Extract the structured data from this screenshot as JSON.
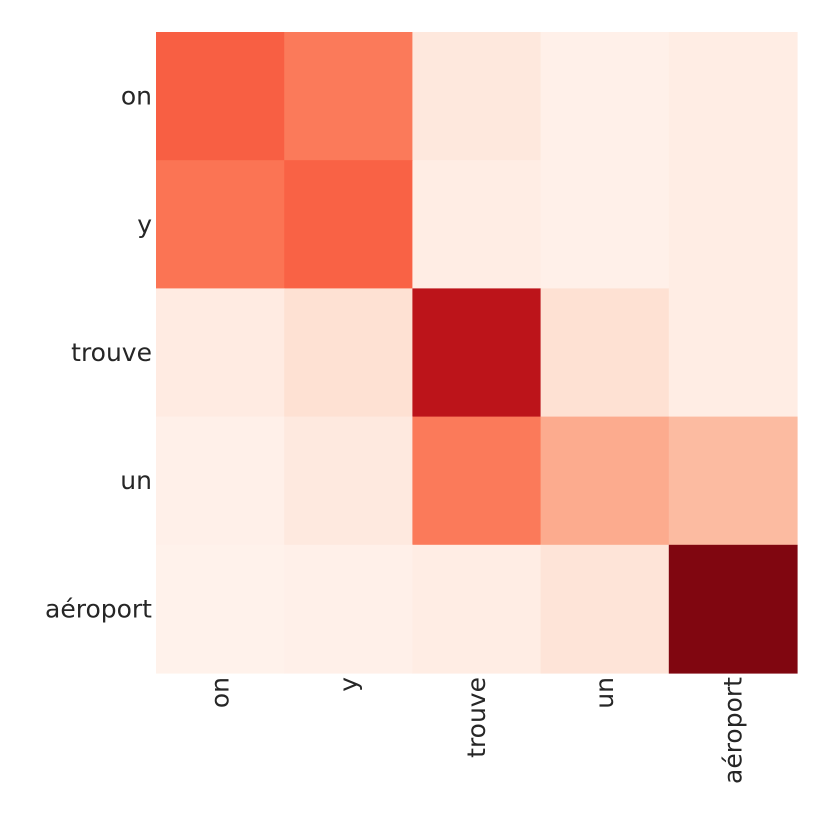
{
  "chart_data": {
    "type": "heatmap",
    "title": "",
    "xlabel": "",
    "ylabel": "",
    "x_categories": [
      "on",
      "y",
      "trouve",
      "un",
      "aéroport"
    ],
    "y_categories": [
      "on",
      "y",
      "trouve",
      "un",
      "aéroport"
    ],
    "colormap": "Reds",
    "value_range": [
      0,
      1
    ],
    "values": [
      [
        0.53,
        0.45,
        0.08,
        0.03,
        0.05
      ],
      [
        0.47,
        0.52,
        0.05,
        0.03,
        0.05
      ],
      [
        0.06,
        0.12,
        0.8,
        0.12,
        0.05
      ],
      [
        0.03,
        0.07,
        0.45,
        0.3,
        0.25
      ],
      [
        0.02,
        0.03,
        0.05,
        0.1,
        0.95
      ]
    ],
    "grid": false,
    "colorbar": false,
    "x_tick_rotation": "vertical"
  }
}
